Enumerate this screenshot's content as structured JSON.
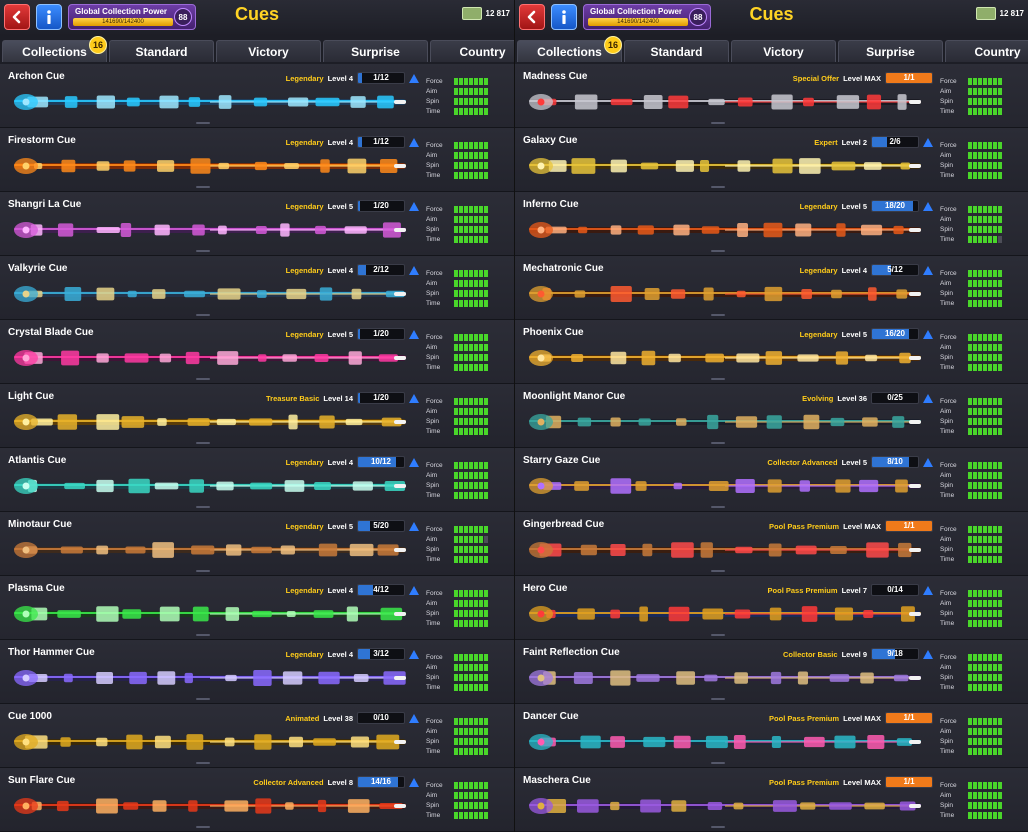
{
  "panels": [
    {
      "title": "Cues",
      "gcp": {
        "label": "Global Collection Power",
        "value": "141690/142400",
        "level": "88",
        "fill": 0.995
      },
      "coins": "12 817",
      "tabs": [
        "Collections",
        "Standard",
        "Victory",
        "Surprise",
        "Country"
      ],
      "tab_badge": "16",
      "cues": [
        {
          "name": "Archon Cue",
          "tier": "Legendary",
          "level": "Level 4",
          "progress": "1/12",
          "fill": 0.08,
          "max": false,
          "upgrade": true,
          "stats": [
            7,
            7,
            7,
            7
          ],
          "colors": [
            "#29c9ff",
            "#1c3d5c",
            "#9ee7ff"
          ]
        },
        {
          "name": "Firestorm Cue",
          "tier": "Legendary",
          "level": "Level 4",
          "progress": "1/12",
          "fill": 0.08,
          "max": false,
          "upgrade": true,
          "stats": [
            7,
            7,
            7,
            7
          ],
          "colors": [
            "#ff8a1a",
            "#7a2a07",
            "#ffd26a"
          ]
        },
        {
          "name": "Shangri La Cue",
          "tier": "Legendary",
          "level": "Level 5",
          "progress": "1/20",
          "fill": 0.05,
          "max": false,
          "upgrade": true,
          "stats": [
            7,
            7,
            7,
            7
          ],
          "colors": [
            "#d45ad8",
            "#3d1f4e",
            "#ffb6ff"
          ]
        },
        {
          "name": "Valkyrie Cue",
          "tier": "Legendary",
          "level": "Level 4",
          "progress": "2/12",
          "fill": 0.17,
          "max": false,
          "upgrade": true,
          "stats": [
            7,
            7,
            7,
            7
          ],
          "colors": [
            "#3aaed8",
            "#23324a",
            "#e8d38a"
          ]
        },
        {
          "name": "Crystal Blade Cue",
          "tier": "Legendary",
          "level": "Level 5",
          "progress": "1/20",
          "fill": 0.05,
          "max": false,
          "upgrade": true,
          "stats": [
            7,
            7,
            7,
            7
          ],
          "colors": [
            "#ff3aa2",
            "#3f1436",
            "#ffa8d8"
          ]
        },
        {
          "name": "Light Cue",
          "tier": "Treasure Basic",
          "level": "Level 14",
          "progress": "1/20",
          "fill": 0.05,
          "max": false,
          "upgrade": true,
          "stats": [
            7,
            7,
            7,
            7
          ],
          "colors": [
            "#e8b22a",
            "#5a3c08",
            "#fff0a0"
          ]
        },
        {
          "name": "Atlantis Cue",
          "tier": "Legendary",
          "level": "Level 4",
          "progress": "10/12",
          "fill": 0.83,
          "max": false,
          "upgrade": true,
          "stats": [
            7,
            7,
            7,
            7
          ],
          "colors": [
            "#3ad8c4",
            "#1b3a44",
            "#c8fff0"
          ]
        },
        {
          "name": "Minotaur Cue",
          "tier": "Legendary",
          "level": "Level 5",
          "progress": "5/20",
          "fill": 0.25,
          "max": false,
          "upgrade": true,
          "stats": [
            7,
            6,
            7,
            7
          ],
          "colors": [
            "#c87a3a",
            "#3d2a1c",
            "#f0c080"
          ]
        },
        {
          "name": "Plasma Cue",
          "tier": "Legendary",
          "level": "Level 4",
          "progress": "4/12",
          "fill": 0.33,
          "max": false,
          "upgrade": true,
          "stats": [
            7,
            7,
            7,
            7
          ],
          "colors": [
            "#3ae84a",
            "#1a3a1c",
            "#b0ffb8"
          ]
        },
        {
          "name": "Thor Hammer Cue",
          "tier": "Legendary",
          "level": "Level 4",
          "progress": "3/12",
          "fill": 0.25,
          "max": false,
          "upgrade": true,
          "stats": [
            7,
            7,
            7,
            7
          ],
          "colors": [
            "#8a6aff",
            "#25214a",
            "#d6ccff"
          ]
        },
        {
          "name": "Cue 1000",
          "tier": "Animated",
          "level": "Level 38",
          "progress": "0/10",
          "fill": 0.0,
          "max": false,
          "upgrade": true,
          "stats": [
            7,
            7,
            7,
            7
          ],
          "colors": [
            "#e0aa20",
            "#3a2a0a",
            "#ffe080"
          ]
        },
        {
          "name": "Sun Flare Cue",
          "tier": "Collector Advanced",
          "level": "Level 8",
          "progress": "14/16",
          "fill": 0.88,
          "max": false,
          "upgrade": true,
          "stats": [
            7,
            7,
            7,
            7
          ],
          "colors": [
            "#e83a1a",
            "#3a1a16",
            "#ffb060"
          ]
        }
      ]
    },
    {
      "title": "Cues",
      "gcp": {
        "label": "Global Collection Power",
        "value": "141690/142400",
        "level": "88",
        "fill": 0.995
      },
      "coins": "12 817",
      "tabs": [
        "Collections",
        "Standard",
        "Victory",
        "Surprise",
        "Country"
      ],
      "tab_badge": "16",
      "cues": [
        {
          "name": "Madness Cue",
          "tier": "Special Offer",
          "level": "Level MAX",
          "progress": "1/1",
          "fill": 1.0,
          "max": true,
          "upgrade": false,
          "stats": [
            7,
            7,
            7,
            7
          ],
          "colors": [
            "#c8c8d0",
            "#1a1a22",
            "#ff3a3a"
          ]
        },
        {
          "name": "Galaxy Cue",
          "tier": "Expert",
          "level": "Level 2",
          "progress": "2/6",
          "fill": 0.33,
          "max": false,
          "upgrade": true,
          "stats": [
            7,
            7,
            7,
            7
          ],
          "colors": [
            "#e8c43a",
            "#3a2a0a",
            "#fff3b0"
          ]
        },
        {
          "name": "Inferno Cue",
          "tier": "Legendary",
          "level": "Level 5",
          "progress": "18/20",
          "fill": 0.9,
          "max": false,
          "upgrade": true,
          "stats": [
            7,
            7,
            7,
            6
          ],
          "colors": [
            "#e85a1a",
            "#3a1a10",
            "#ffb080"
          ]
        },
        {
          "name": "Mechatronic Cue",
          "tier": "Legendary",
          "level": "Level 4",
          "progress": "5/12",
          "fill": 0.42,
          "max": false,
          "upgrade": true,
          "stats": [
            7,
            7,
            7,
            7
          ],
          "colors": [
            "#e0a030",
            "#3a1a10",
            "#ff5a30"
          ]
        },
        {
          "name": "Phoenix Cue",
          "tier": "Legendary",
          "level": "Level 5",
          "progress": "16/20",
          "fill": 0.8,
          "max": false,
          "upgrade": true,
          "stats": [
            7,
            7,
            7,
            7
          ],
          "colors": [
            "#f0b030",
            "#4a2a0a",
            "#ffe6a0"
          ]
        },
        {
          "name": "Moonlight Manor Cue",
          "tier": "Evolving",
          "level": "Level 36",
          "progress": "0/25",
          "fill": 0.0,
          "max": false,
          "upgrade": true,
          "stats": [
            7,
            7,
            7,
            7
          ],
          "colors": [
            "#3aa8a0",
            "#1a1e2a",
            "#e0b060"
          ]
        },
        {
          "name": "Starry Gaze Cue",
          "tier": "Collector Advanced",
          "level": "Level 5",
          "progress": "8/10",
          "fill": 0.8,
          "max": false,
          "upgrade": true,
          "stats": [
            7,
            7,
            7,
            7
          ],
          "colors": [
            "#e0a030",
            "#2a1a3a",
            "#b070ff"
          ]
        },
        {
          "name": "Gingerbread Cue",
          "tier": "Pool Pass Premium",
          "level": "Level MAX",
          "progress": "1/1",
          "fill": 1.0,
          "max": true,
          "upgrade": false,
          "stats": [
            7,
            7,
            7,
            7
          ],
          "colors": [
            "#c87a3a",
            "#3a1e10",
            "#ff4a4a"
          ]
        },
        {
          "name": "Hero Cue",
          "tier": "Pool Pass Premium",
          "level": "Level 7",
          "progress": "0/14",
          "fill": 0.0,
          "max": false,
          "upgrade": true,
          "stats": [
            7,
            7,
            7,
            7
          ],
          "colors": [
            "#e0a020",
            "#1a2a5a",
            "#ff3a3a"
          ]
        },
        {
          "name": "Faint Reflection Cue",
          "tier": "Collector Basic",
          "level": "Level 9",
          "progress": "9/18",
          "fill": 0.5,
          "max": false,
          "upgrade": true,
          "stats": [
            7,
            7,
            7,
            7
          ],
          "colors": [
            "#a07ae0",
            "#2a1e3a",
            "#e0c080"
          ]
        },
        {
          "name": "Dancer Cue",
          "tier": "Pool Pass Premium",
          "level": "Level MAX",
          "progress": "1/1",
          "fill": 1.0,
          "max": true,
          "upgrade": false,
          "stats": [
            7,
            7,
            7,
            7
          ],
          "colors": [
            "#2ab8c8",
            "#1a2a3a",
            "#ff5ab0"
          ]
        },
        {
          "name": "Maschera Cue",
          "tier": "Pool Pass Premium",
          "level": "Level MAX",
          "progress": "1/1",
          "fill": 1.0,
          "max": true,
          "upgrade": false,
          "stats": [
            7,
            7,
            7,
            7
          ],
          "colors": [
            "#9a5ae0",
            "#241a3a",
            "#e0b040"
          ]
        }
      ]
    }
  ],
  "stat_labels": [
    "Force",
    "Aim",
    "Spin",
    "Time"
  ],
  "stat_max": 7
}
